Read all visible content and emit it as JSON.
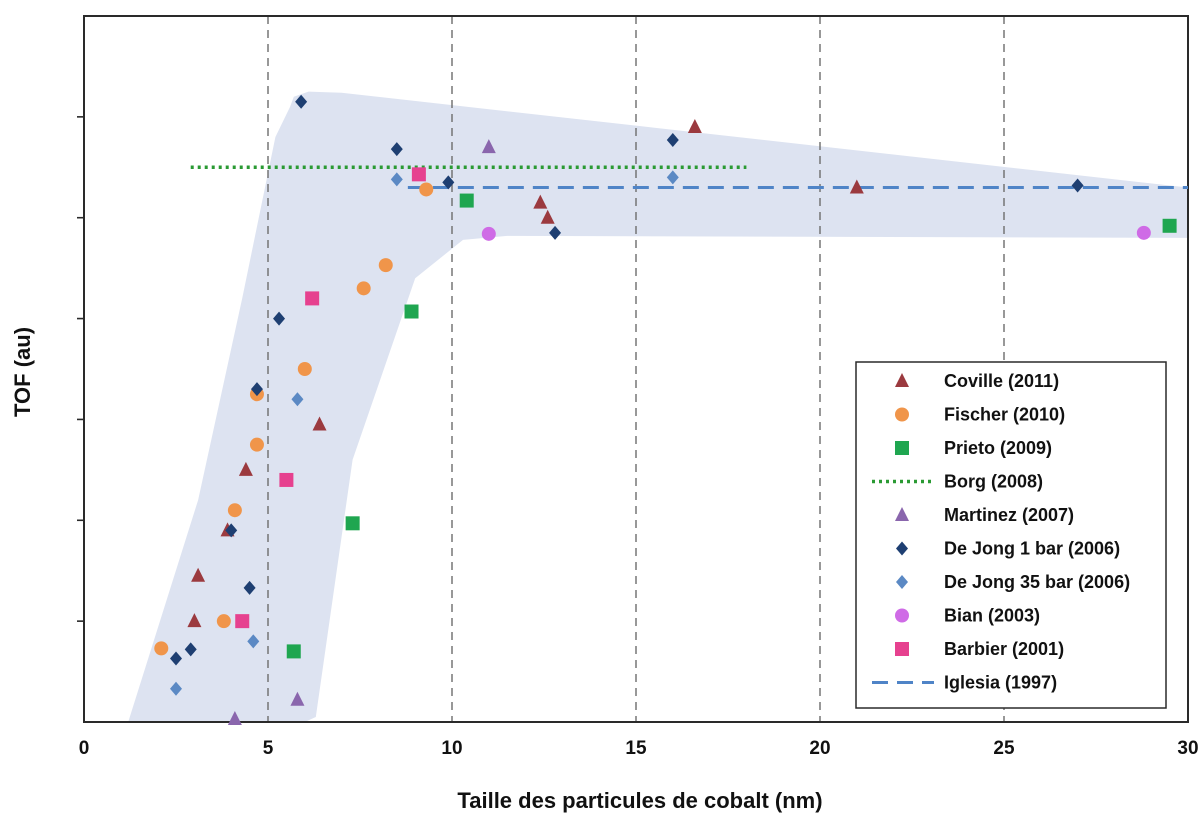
{
  "chart_data": {
    "type": "scatter",
    "title": "",
    "xlabel": "Taille des particules de cobalt (nm)",
    "ylabel": "TOF (au)",
    "xlim": [
      0,
      30
    ],
    "ylim": [
      0,
      7
    ],
    "x_ticks": [
      "0",
      "5",
      "10",
      "15",
      "20",
      "25",
      "30"
    ],
    "x_tick_values": [
      0,
      5,
      10,
      15,
      20,
      25,
      30
    ],
    "y_tick_values": [
      1,
      2,
      3,
      4,
      5,
      6
    ],
    "grid": "vertical dashed",
    "legend_position": "bottom-right",
    "shaded_region": {
      "color": "#dde3f1",
      "outline": [
        [
          1.2,
          0
        ],
        [
          3.1,
          2.2
        ],
        [
          4.3,
          4.2
        ],
        [
          5.2,
          5.8
        ],
        [
          5.6,
          6.1
        ],
        [
          5.7,
          6.2
        ],
        [
          6.1,
          6.25
        ],
        [
          7.0,
          6.24
        ],
        [
          30,
          5.3
        ],
        [
          30,
          4.8
        ],
        [
          11.5,
          4.82
        ],
        [
          10.3,
          4.78
        ],
        [
          9.0,
          4.4
        ],
        [
          7.3,
          2.6
        ],
        [
          6.3,
          0.05
        ],
        [
          6.0,
          0
        ]
      ]
    },
    "series": [
      {
        "name": "Coville (2011)",
        "marker": "triangle",
        "color": "#9b3a3f",
        "points": [
          [
            3.1,
            1.45
          ],
          [
            3.0,
            1.0
          ],
          [
            3.9,
            1.9
          ],
          [
            4.4,
            2.5
          ],
          [
            6.4,
            2.95
          ],
          [
            12.4,
            5.15
          ],
          [
            12.6,
            5.0
          ],
          [
            16.6,
            5.9
          ],
          [
            21.0,
            5.3
          ]
        ]
      },
      {
        "name": "Fischer (2010)",
        "marker": "circle",
        "color": "#f0954a",
        "points": [
          [
            2.1,
            0.73
          ],
          [
            3.8,
            1.0
          ],
          [
            4.1,
            2.1
          ],
          [
            4.7,
            2.75
          ],
          [
            4.7,
            3.25
          ],
          [
            6.0,
            3.5
          ],
          [
            7.6,
            4.3
          ],
          [
            8.2,
            4.53
          ],
          [
            9.3,
            5.28
          ]
        ]
      },
      {
        "name": "Prieto (2009)",
        "marker": "square",
        "color": "#1fa650",
        "points": [
          [
            5.7,
            0.7
          ],
          [
            7.3,
            1.97
          ],
          [
            8.9,
            4.07
          ],
          [
            10.4,
            5.17
          ],
          [
            29.5,
            4.92
          ]
        ]
      },
      {
        "name": "Borg (2008)",
        "marker": "dotted-line",
        "color": "#2a9a33",
        "line": [
          [
            2.9,
            5.5
          ],
          [
            18.0,
            5.5
          ]
        ]
      },
      {
        "name": "Martinez (2007)",
        "marker": "triangle",
        "color": "#8a66ad",
        "points": [
          [
            4.1,
            0.03
          ],
          [
            5.8,
            0.22
          ],
          [
            11.0,
            5.7
          ]
        ]
      },
      {
        "name": "De Jong 1 bar (2006)",
        "marker": "diamond",
        "color": "#1e3f72",
        "points": [
          [
            2.5,
            0.63
          ],
          [
            2.9,
            0.72
          ],
          [
            4.0,
            1.9
          ],
          [
            4.5,
            1.33
          ],
          [
            4.7,
            3.3
          ],
          [
            5.3,
            4.0
          ],
          [
            5.9,
            6.15
          ],
          [
            8.5,
            5.68
          ],
          [
            9.9,
            5.35
          ],
          [
            12.8,
            4.85
          ],
          [
            16.0,
            5.77
          ],
          [
            27.0,
            5.32
          ]
        ]
      },
      {
        "name": "De Jong 35 bar (2006)",
        "marker": "diamond",
        "color": "#5b89c4",
        "points": [
          [
            2.5,
            0.33
          ],
          [
            4.6,
            0.8
          ],
          [
            5.8,
            3.2
          ],
          [
            8.5,
            5.38
          ],
          [
            16.0,
            5.4
          ]
        ]
      },
      {
        "name": "Bian (2003)",
        "marker": "circle",
        "color": "#cf6be6",
        "points": [
          [
            11.0,
            4.84
          ],
          [
            28.8,
            4.85
          ]
        ]
      },
      {
        "name": "Barbier (2001)",
        "marker": "square",
        "color": "#e6418f",
        "points": [
          [
            4.3,
            1.0
          ],
          [
            5.5,
            2.4
          ],
          [
            6.2,
            4.2
          ],
          [
            9.1,
            5.43
          ]
        ]
      },
      {
        "name": "Iglesia (1997)",
        "marker": "dashed-line",
        "color": "#4f84c7",
        "line": [
          [
            8.8,
            5.3
          ],
          [
            30,
            5.3
          ]
        ]
      }
    ]
  }
}
